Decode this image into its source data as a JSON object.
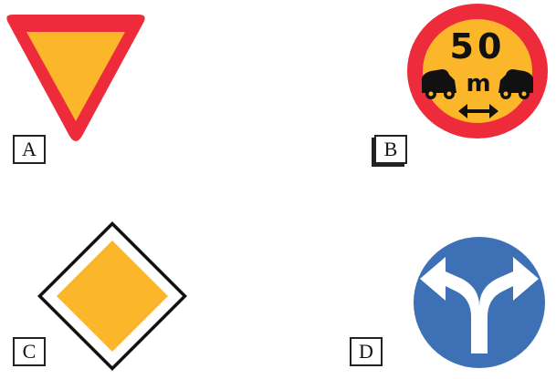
{
  "signs": [
    {
      "label": "A",
      "icon": "yield-sign-icon"
    },
    {
      "label": "B",
      "icon": "minimum-distance-sign-icon",
      "distance": "50",
      "unit": "m"
    },
    {
      "label": "C",
      "icon": "priority-road-sign-icon"
    },
    {
      "label": "D",
      "icon": "turn-left-or-right-sign-icon"
    }
  ],
  "colors": {
    "red": "#ee2b3a",
    "yellow": "#fbb62a",
    "blue": "#3e70b6",
    "black": "#111111",
    "white": "#ffffff"
  }
}
